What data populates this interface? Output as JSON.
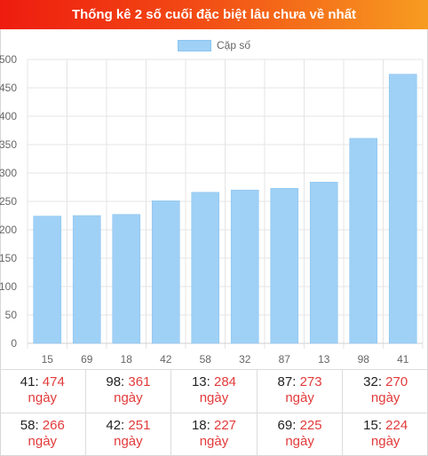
{
  "title": "Thống kê 2 số cuối đặc biệt lâu chưa về nhất",
  "colors": {
    "bar": "#9fd0f5",
    "count": "#e23a3a",
    "header_left": "#ee1c0f",
    "header_right": "#f79c20"
  },
  "chart_data": {
    "type": "bar",
    "categories": [
      "15",
      "69",
      "18",
      "42",
      "58",
      "32",
      "87",
      "13",
      "98",
      "41"
    ],
    "series": [
      {
        "name": "Cặp số",
        "values": [
          224,
          225,
          227,
          251,
          266,
          270,
          273,
          284,
          361,
          474
        ]
      }
    ],
    "ylim": [
      0,
      500
    ],
    "yticks": [
      "0",
      "50",
      "100",
      "150",
      "200",
      "250",
      "300",
      "350",
      "400",
      "450",
      "500"
    ],
    "grid": true,
    "legend_position": "top"
  },
  "stats": {
    "unit": "ngày",
    "rows": [
      [
        {
          "number": "41",
          "count": "474"
        },
        {
          "number": "98",
          "count": "361"
        },
        {
          "number": "13",
          "count": "284"
        },
        {
          "number": "87",
          "count": "273"
        },
        {
          "number": "32",
          "count": "270"
        }
      ],
      [
        {
          "number": "58",
          "count": "266"
        },
        {
          "number": "42",
          "count": "251"
        },
        {
          "number": "18",
          "count": "227"
        },
        {
          "number": "69",
          "count": "225"
        },
        {
          "number": "15",
          "count": "224"
        }
      ]
    ]
  }
}
